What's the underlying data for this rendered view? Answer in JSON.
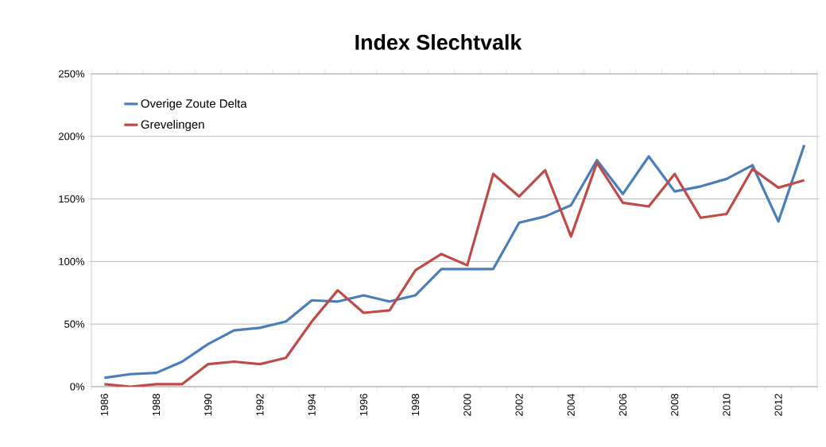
{
  "chart_data": {
    "type": "line",
    "title": "Index Slechtvalk",
    "categories": [
      "1986",
      null,
      "1988",
      null,
      "1990",
      null,
      "1992",
      null,
      "1994",
      null,
      "1996",
      null,
      "1998",
      null,
      "2000",
      null,
      "2002",
      null,
      "2004",
      null,
      "2006",
      null,
      "2008",
      null,
      "2010",
      null,
      "2012",
      null
    ],
    "series": [
      {
        "name": "Overige Zoute Delta",
        "color": "#4a7ebb",
        "values": [
          7,
          10,
          11,
          20,
          34,
          45,
          47,
          52,
          69,
          68,
          73,
          68,
          73,
          94,
          94,
          94,
          131,
          136,
          145,
          181,
          154,
          184,
          156,
          160,
          166,
          177,
          132,
          193
        ]
      },
      {
        "name": "Grevelingen",
        "color": "#be4b48",
        "values": [
          2,
          0,
          2,
          2,
          18,
          20,
          18,
          23,
          52,
          77,
          59,
          61,
          93,
          106,
          97,
          170,
          152,
          173,
          120,
          179,
          147,
          144,
          170,
          135,
          138,
          174,
          159,
          165
        ]
      }
    ],
    "ylim": [
      0,
      250
    ],
    "yticks": [
      {
        "value": 0,
        "label": "0%"
      },
      {
        "value": 50,
        "label": "50%"
      },
      {
        "value": 100,
        "label": "100%"
      },
      {
        "value": 150,
        "label": "150%"
      },
      {
        "value": 200,
        "label": "200%"
      },
      {
        "value": 250,
        "label": "250%"
      }
    ],
    "grid": "y",
    "legend": "top left",
    "marker": "none",
    "line_style": "solid"
  }
}
